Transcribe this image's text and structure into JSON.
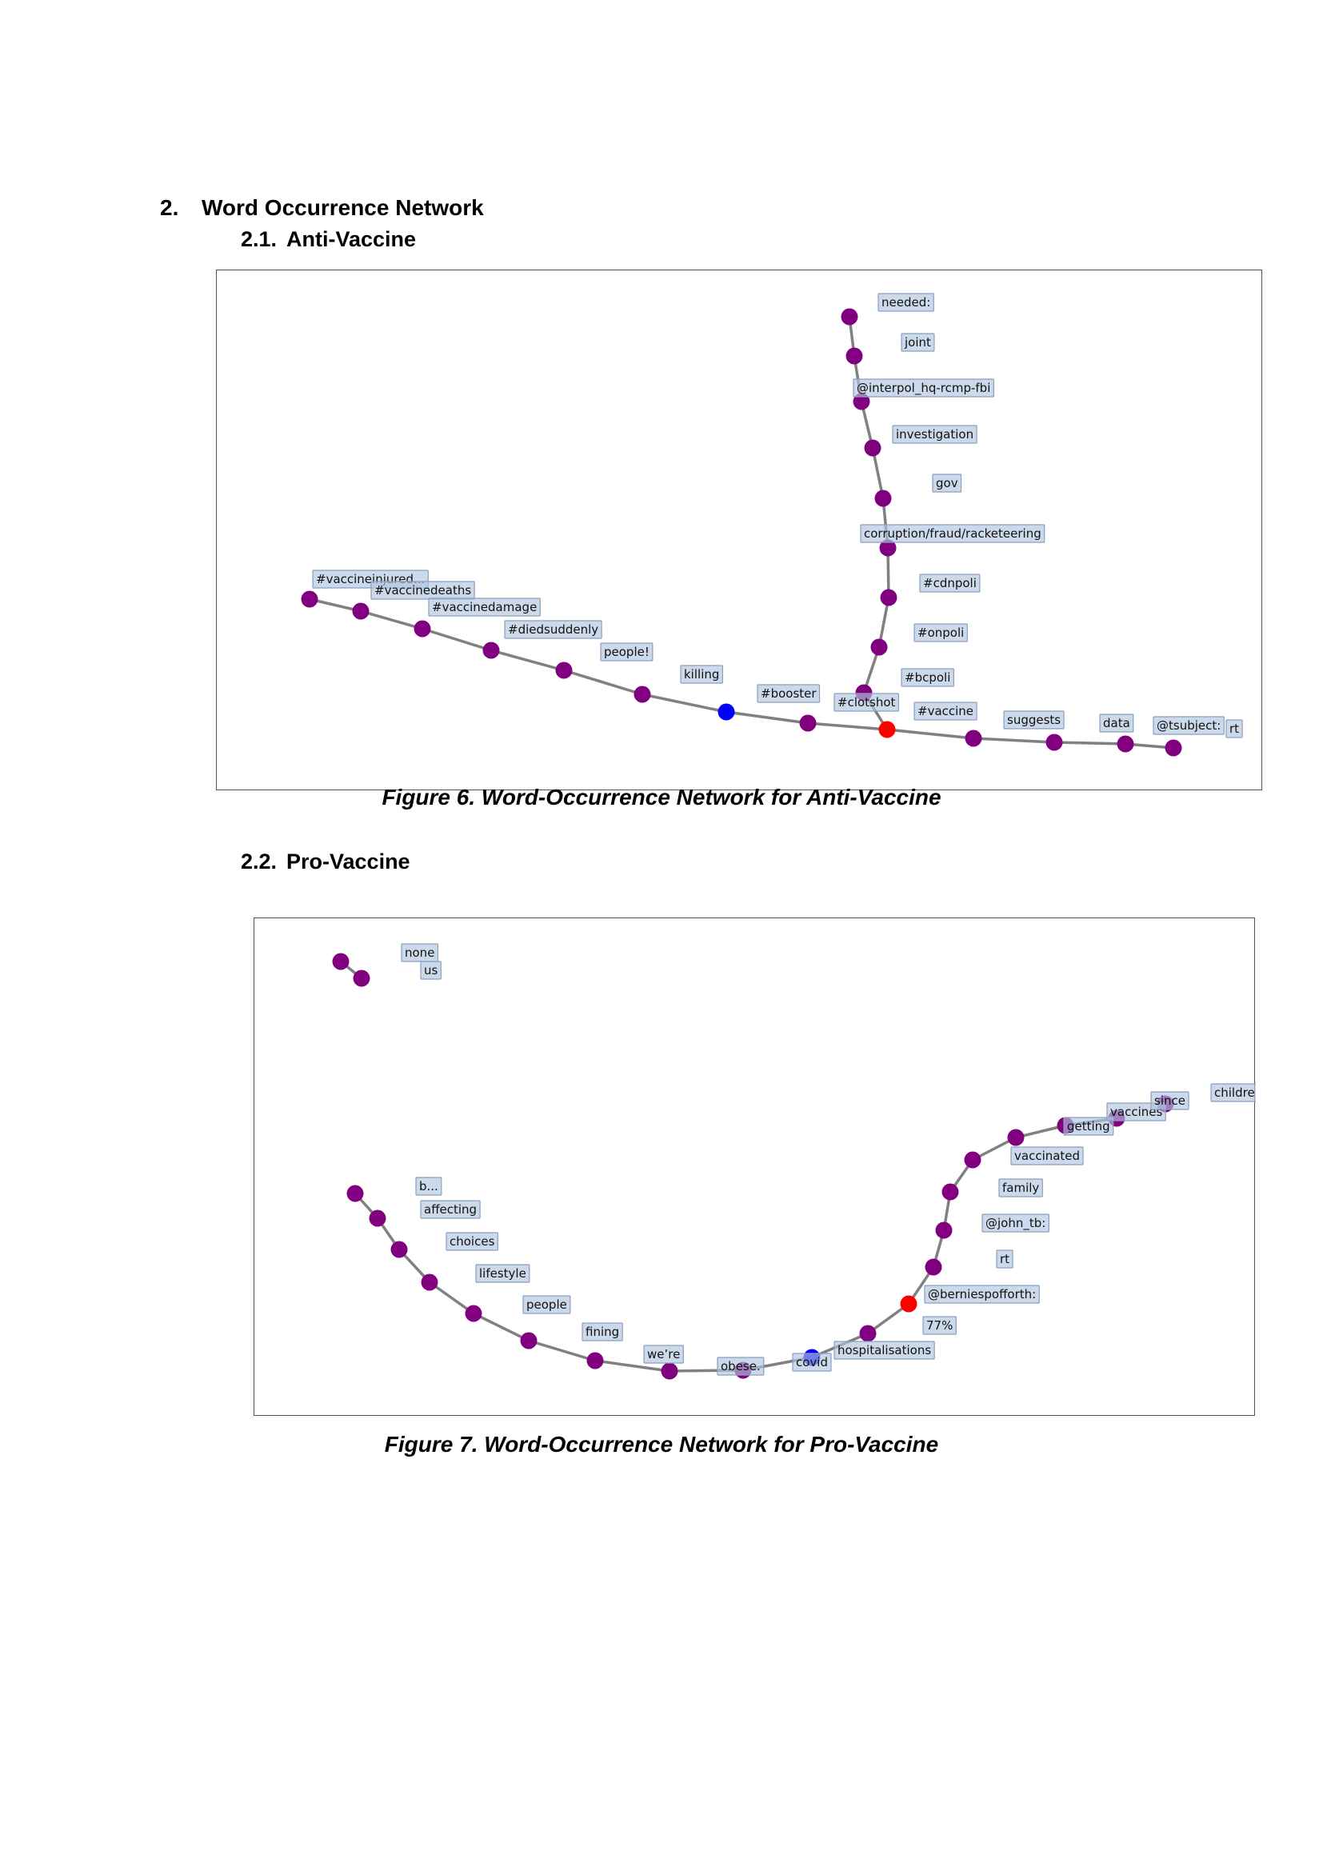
{
  "section": {
    "number": "2.",
    "title": "Word Occurrence Network"
  },
  "subsections": [
    {
      "number": "2.1.",
      "title": "Anti-Vaccine"
    },
    {
      "number": "2.2.",
      "title": "Pro-Vaccine"
    }
  ],
  "figures": [
    {
      "caption": "Figure 6. Word-Occurrence Network for Anti-Vaccine",
      "node_colors": {
        "default": "#800080",
        "source": "#0000ff",
        "hub": "#ff0000"
      },
      "nodes": [
        {
          "label": "#vaccineinjured...",
          "color": "default"
        },
        {
          "label": "#vaccinedeaths",
          "color": "default"
        },
        {
          "label": "#vaccinedamage",
          "color": "default"
        },
        {
          "label": "#diedsuddenly",
          "color": "default"
        },
        {
          "label": "people!",
          "color": "default"
        },
        {
          "label": "killing",
          "color": "default"
        },
        {
          "label": "#booster",
          "color": "source"
        },
        {
          "label": "#clotshot",
          "color": "default"
        },
        {
          "label": "#vaccine",
          "color": "hub"
        },
        {
          "label": "suggests",
          "color": "default"
        },
        {
          "label": "data",
          "color": "default"
        },
        {
          "label": "@tsubject:",
          "color": "default"
        },
        {
          "label": "rt",
          "color": "default"
        },
        {
          "label": "#bcpoli",
          "color": "default"
        },
        {
          "label": "#onpoli",
          "color": "default"
        },
        {
          "label": "#cdnpoli",
          "color": "default"
        },
        {
          "label": "corruption/fraud/racketeering",
          "color": "default"
        },
        {
          "label": "gov",
          "color": "default"
        },
        {
          "label": "investigation",
          "color": "default"
        },
        {
          "label": "@interpol_hq-rcmp-fbi",
          "color": "default"
        },
        {
          "label": "joint",
          "color": "default"
        },
        {
          "label": "needed:",
          "color": "default"
        }
      ],
      "edges": [
        [
          0,
          1
        ],
        [
          1,
          2
        ],
        [
          2,
          3
        ],
        [
          3,
          4
        ],
        [
          4,
          5
        ],
        [
          5,
          6
        ],
        [
          6,
          7
        ],
        [
          7,
          8
        ],
        [
          8,
          9
        ],
        [
          9,
          10
        ],
        [
          10,
          11
        ],
        [
          11,
          12
        ],
        [
          8,
          13
        ],
        [
          13,
          14
        ],
        [
          14,
          15
        ],
        [
          15,
          16
        ],
        [
          16,
          17
        ],
        [
          17,
          18
        ],
        [
          18,
          19
        ],
        [
          19,
          20
        ],
        [
          20,
          21
        ]
      ]
    },
    {
      "caption": "Figure 7. Word-Occurrence Network for Pro-Vaccine",
      "node_colors": {
        "default": "#800080",
        "source": "#0000ff",
        "hub": "#ff0000"
      },
      "nodes": [
        {
          "label": "none",
          "color": "default"
        },
        {
          "label": "us",
          "color": "default"
        },
        {
          "label": "b...",
          "color": "default"
        },
        {
          "label": "affecting",
          "color": "default"
        },
        {
          "label": "choices",
          "color": "default"
        },
        {
          "label": "lifestyle",
          "color": "default"
        },
        {
          "label": "people",
          "color": "default"
        },
        {
          "label": "fining",
          "color": "default"
        },
        {
          "label": "we’re",
          "color": "default"
        },
        {
          "label": "obese.",
          "color": "default"
        },
        {
          "label": "covid",
          "color": "default"
        },
        {
          "label": "hospitalisations",
          "color": "source"
        },
        {
          "label": "77%",
          "color": "default"
        },
        {
          "label": "@berniespofforth:",
          "color": "hub"
        },
        {
          "label": "rt",
          "color": "default"
        },
        {
          "label": "@john_tb:",
          "color": "default"
        },
        {
          "label": "family",
          "color": "default"
        },
        {
          "label": "vaccinated",
          "color": "default"
        },
        {
          "label": "getting",
          "color": "default"
        },
        {
          "label": "vaccines",
          "color": "default"
        },
        {
          "label": "since",
          "color": "default"
        },
        {
          "label": "children.",
          "color": "default"
        }
      ],
      "edges": [
        [
          0,
          1
        ],
        [
          2,
          3
        ],
        [
          3,
          4
        ],
        [
          4,
          5
        ],
        [
          5,
          6
        ],
        [
          6,
          7
        ],
        [
          7,
          8
        ],
        [
          8,
          9
        ],
        [
          9,
          10
        ],
        [
          10,
          11
        ],
        [
          11,
          12
        ],
        [
          12,
          13
        ],
        [
          13,
          14
        ],
        [
          14,
          15
        ],
        [
          15,
          16
        ],
        [
          16,
          17
        ],
        [
          17,
          18
        ],
        [
          18,
          19
        ],
        [
          19,
          20
        ]
      ]
    }
  ]
}
